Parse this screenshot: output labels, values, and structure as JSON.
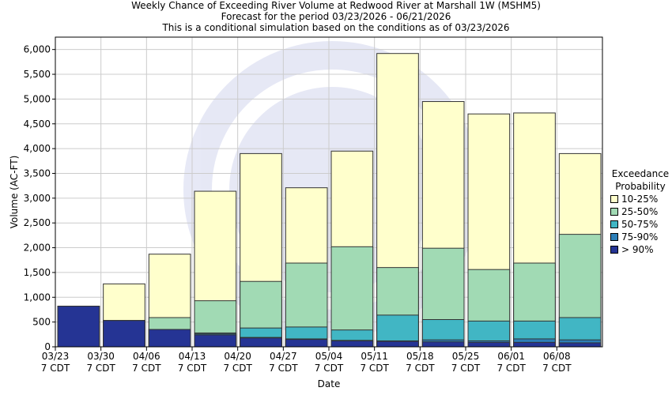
{
  "header": {
    "title": "Weekly Chance of Exceeding River Volume at Redwood River at Marshall 1W (MSHM5)",
    "line2": "Forecast for the period 03/23/2026 - 06/21/2026",
    "line3": "This is a conditional simulation based on the conditions as of 03/23/2026"
  },
  "colors": {
    "p10_25": "#ffffcc",
    "p25_50": "#a1dab4",
    "p50_75": "#41b6c4",
    "p75_90": "#2c7fb8",
    "p90": "#253494"
  },
  "chart_data": {
    "type": "bar",
    "xlabel": "Date",
    "ylabel": "Volume (AC-FT)",
    "ylim": [
      0,
      6250
    ],
    "yticks": [
      0,
      500,
      1000,
      1500,
      2000,
      2500,
      3000,
      3500,
      4000,
      4500,
      5000,
      5500,
      6000
    ],
    "ytick_labels": [
      "0",
      "500",
      "1,000",
      "1,500",
      "2,000",
      "2,500",
      "3,000",
      "3,500",
      "4,000",
      "4,500",
      "5,000",
      "5,500",
      "6,000"
    ],
    "tick_labels": [
      "03/23",
      "03/30",
      "04/06",
      "04/13",
      "04/20",
      "04/27",
      "05/04",
      "05/11",
      "05/18",
      "05/25",
      "06/01",
      "06/08"
    ],
    "tick_sublabel": "7 CDT",
    "grid": true,
    "legend_title": [
      "Exceedance",
      "Probability"
    ],
    "legend_position": "right",
    "series": [
      {
        "name": "10-25%",
        "color": "#ffffcc",
        "values": [
          820,
          1270,
          1870,
          3140,
          3900,
          3210,
          3950,
          5920,
          4950,
          4700,
          4720,
          3900
        ]
      },
      {
        "name": "25-50%",
        "color": "#a1dab4",
        "values": [
          820,
          530,
          590,
          930,
          1320,
          1690,
          2020,
          1600,
          1990,
          1560,
          1690,
          2270
        ]
      },
      {
        "name": "50-75%",
        "color": "#41b6c4",
        "values": [
          820,
          530,
          350,
          280,
          380,
          400,
          340,
          640,
          550,
          520,
          520,
          590
        ]
      },
      {
        "name": "75-90%",
        "color": "#2c7fb8",
        "values": [
          820,
          530,
          350,
          260,
          190,
          160,
          130,
          120,
          140,
          120,
          160,
          140
        ]
      },
      {
        "name": "> 90%",
        "color": "#253494",
        "values": [
          820,
          530,
          350,
          240,
          180,
          150,
          120,
          110,
          100,
          90,
          90,
          80
        ]
      }
    ]
  }
}
